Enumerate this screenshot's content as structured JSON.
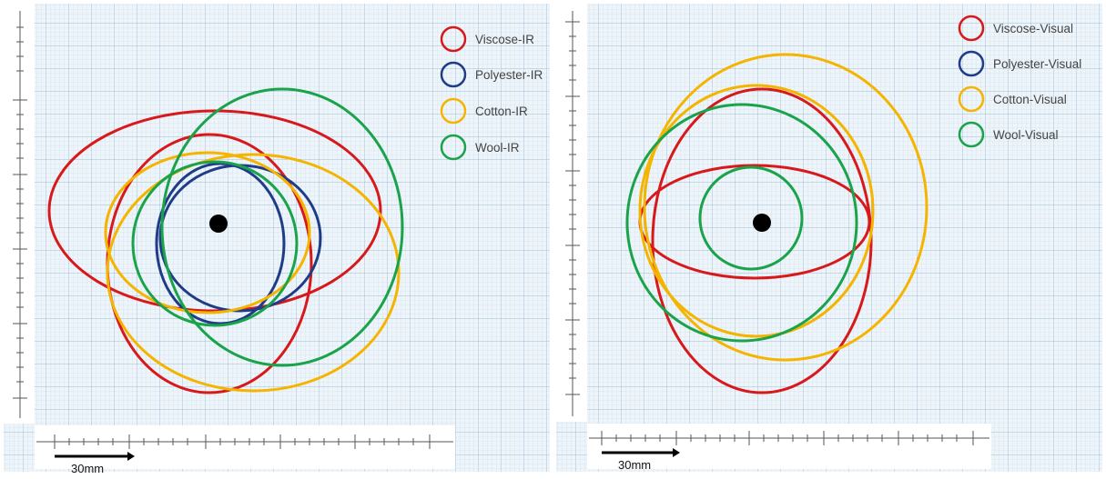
{
  "panels": [
    {
      "id": "ir",
      "legend": [
        {
          "label": "Viscose-IR",
          "color": "#d7191c"
        },
        {
          "label": "Polyester-IR",
          "color": "#1f3c88"
        },
        {
          "label": "Cotton-IR",
          "color": "#f4b400"
        },
        {
          "label": "Wool-IR",
          "color": "#1aa34a"
        }
      ],
      "scale_label": "30mm"
    },
    {
      "id": "visual",
      "legend": [
        {
          "label": "Viscose-Visual",
          "color": "#d7191c"
        },
        {
          "label": "Polyester-Visual",
          "color": "#1f3c88"
        },
        {
          "label": "Cotton-Visual",
          "color": "#f4b400"
        },
        {
          "label": "Wool-Visual",
          "color": "#1aa34a"
        }
      ],
      "scale_label": "30mm"
    }
  ],
  "colors": {
    "grid_minor": "#c9dbe8",
    "grid_major": "#9fbdd4",
    "background": "#eef5fa",
    "center_dot": "#000000"
  }
}
